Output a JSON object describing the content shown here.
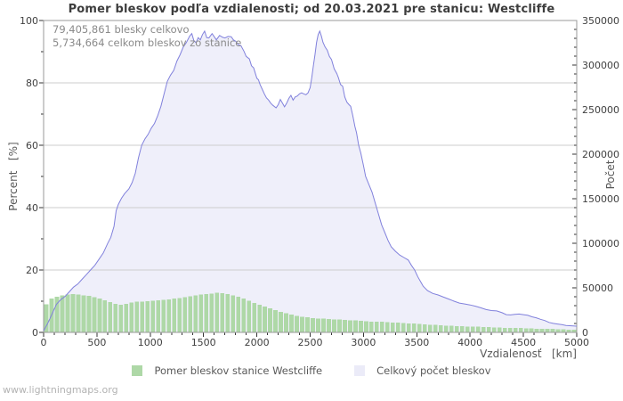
{
  "page": {
    "watermark": "www.lightningmaps.org"
  },
  "chart_data": {
    "type": "area",
    "title": "Pomer bleskov podľa vzdialenosti; od 20.03.2021 pre stanicu: Westcliffe",
    "annotations": [
      "79,405,861 blesky celkovo",
      "5,734,664 celkom bleskov zo stanice"
    ],
    "grid": "horizontal-major-only",
    "legend_position": "bottom-center",
    "colors": {
      "line": "#8181dc",
      "area_fill": "#efeffa",
      "bars": "#aed8a7",
      "gridline": "#cdcdcd",
      "border": "#9a9a9a",
      "tick": "#333333"
    },
    "x_axis": {
      "label": "Vzdialenosť   [km]",
      "min": 0,
      "max": 5000,
      "major_ticks": [
        0,
        500,
        1000,
        1500,
        2000,
        2500,
        3000,
        3500,
        4000,
        4500,
        5000
      ],
      "minor_tick_interval": 100
    },
    "y_left": {
      "label": "Percent   [%]",
      "min": 0,
      "max": 100,
      "major_ticks": [
        0,
        20,
        40,
        60,
        80,
        100
      ],
      "minor_tick_interval": 10
    },
    "y_right": {
      "label": "Počet",
      "min": 0,
      "max": 350000,
      "major_ticks": [
        0,
        50000,
        100000,
        150000,
        200000,
        250000,
        300000,
        350000
      ],
      "minor_tick_interval": 10000
    },
    "legend": [
      {
        "label": "Pomer bleskov stanice Westcliffe",
        "color": "#aed8a7"
      },
      {
        "label": "Celkový počet bleskov",
        "color": "#ebebf8"
      }
    ],
    "series": [
      {
        "name": "Pomer bleskov stanice Westcliffe",
        "type": "bar",
        "axis": "left_percent",
        "color": "#aed8a7",
        "x_start_km": 25,
        "x_step_km": 50,
        "values_percent": [
          9.0,
          10.9,
          11.4,
          11.8,
          12.1,
          12.3,
          12.1,
          11.9,
          11.7,
          11.3,
          10.8,
          10.3,
          9.7,
          9.1,
          8.9,
          9.2,
          9.6,
          9.9,
          9.8,
          10.0,
          10.2,
          10.3,
          10.4,
          10.6,
          10.8,
          11.0,
          11.3,
          11.6,
          11.9,
          12.1,
          12.3,
          12.5,
          12.7,
          12.6,
          12.3,
          11.9,
          11.4,
          10.8,
          10.1,
          9.5,
          8.9,
          8.3,
          7.7,
          7.1,
          6.6,
          6.1,
          5.7,
          5.3,
          5.0,
          4.8,
          4.6,
          4.5,
          4.4,
          4.3,
          4.2,
          4.1,
          4.0,
          3.9,
          3.8,
          3.7,
          3.6,
          3.5,
          3.4,
          3.4,
          3.3,
          3.2,
          3.1,
          3.0,
          2.9,
          2.8,
          2.7,
          2.6,
          2.5,
          2.4,
          2.3,
          2.2,
          2.1,
          2.0,
          2.0,
          1.9,
          1.8,
          1.8,
          1.7,
          1.7,
          1.6,
          1.6,
          1.5,
          1.5,
          1.4,
          1.4,
          1.3,
          1.3,
          1.2,
          1.2,
          1.1,
          1.1,
          1.0,
          1.0,
          0.9,
          0.9
        ]
      },
      {
        "name": "Celkový počet bleskov",
        "type": "area-line",
        "axis": "left_percent_equiv_right_count",
        "line_color": "#8181dc",
        "fill_color": "#efeffa",
        "points_km_percent": [
          [
            0,
            0.5
          ],
          [
            40,
            3
          ],
          [
            80,
            6
          ],
          [
            120,
            9
          ],
          [
            160,
            10.5
          ],
          [
            200,
            11.5
          ],
          [
            240,
            13
          ],
          [
            280,
            14.5
          ],
          [
            320,
            15.5
          ],
          [
            360,
            17
          ],
          [
            400,
            18.5
          ],
          [
            440,
            20
          ],
          [
            480,
            21.5
          ],
          [
            520,
            23.5
          ],
          [
            560,
            25.5
          ],
          [
            600,
            28.5
          ],
          [
            630,
            30.5
          ],
          [
            660,
            34
          ],
          [
            680,
            39
          ],
          [
            700,
            41
          ],
          [
            730,
            43
          ],
          [
            760,
            44.5
          ],
          [
            800,
            46
          ],
          [
            830,
            48
          ],
          [
            860,
            51
          ],
          [
            890,
            56
          ],
          [
            920,
            60
          ],
          [
            950,
            62
          ],
          [
            980,
            63.5
          ],
          [
            1010,
            65.5
          ],
          [
            1040,
            67
          ],
          [
            1070,
            69.5
          ],
          [
            1100,
            72.5
          ],
          [
            1130,
            76.5
          ],
          [
            1160,
            80.5
          ],
          [
            1190,
            82.5
          ],
          [
            1220,
            84
          ],
          [
            1250,
            87
          ],
          [
            1280,
            89
          ],
          [
            1310,
            91.5
          ],
          [
            1340,
            93
          ],
          [
            1370,
            95
          ],
          [
            1390,
            95.8
          ],
          [
            1410,
            93.5
          ],
          [
            1430,
            92.9
          ],
          [
            1450,
            94.5
          ],
          [
            1470,
            93.8
          ],
          [
            1490,
            95.5
          ],
          [
            1510,
            96.6
          ],
          [
            1530,
            94.5
          ],
          [
            1550,
            94.4
          ],
          [
            1580,
            95.8
          ],
          [
            1600,
            94.8
          ],
          [
            1620,
            93.8
          ],
          [
            1650,
            95.2
          ],
          [
            1680,
            94.6
          ],
          [
            1700,
            94.4
          ],
          [
            1730,
            94.9
          ],
          [
            1760,
            94.8
          ],
          [
            1780,
            93.8
          ],
          [
            1800,
            93.4
          ],
          [
            1830,
            92.2
          ],
          [
            1850,
            92
          ],
          [
            1880,
            90.1
          ],
          [
            1900,
            88.5
          ],
          [
            1930,
            87.7
          ],
          [
            1950,
            85.5
          ],
          [
            1970,
            84.8
          ],
          [
            2000,
            81.5
          ],
          [
            2015,
            81
          ],
          [
            2030,
            79.5
          ],
          [
            2050,
            78
          ],
          [
            2070,
            76.5
          ],
          [
            2090,
            75.2
          ],
          [
            2110,
            74.5
          ],
          [
            2130,
            73.5
          ],
          [
            2150,
            72.8
          ],
          [
            2180,
            72
          ],
          [
            2200,
            73
          ],
          [
            2220,
            74.7
          ],
          [
            2240,
            73.5
          ],
          [
            2260,
            72.3
          ],
          [
            2280,
            73.5
          ],
          [
            2300,
            75
          ],
          [
            2320,
            76
          ],
          [
            2340,
            74.5
          ],
          [
            2360,
            75.5
          ],
          [
            2380,
            75.8
          ],
          [
            2400,
            76.5
          ],
          [
            2420,
            76.8
          ],
          [
            2440,
            76.5
          ],
          [
            2460,
            76.2
          ],
          [
            2480,
            76.8
          ],
          [
            2500,
            78.5
          ],
          [
            2515,
            81.7
          ],
          [
            2530,
            85.5
          ],
          [
            2545,
            89
          ],
          [
            2560,
            93
          ],
          [
            2575,
            95.5
          ],
          [
            2590,
            96.6
          ],
          [
            2605,
            95
          ],
          [
            2620,
            93
          ],
          [
            2640,
            91.5
          ],
          [
            2660,
            90.5
          ],
          [
            2680,
            88.5
          ],
          [
            2700,
            87.5
          ],
          [
            2725,
            84.5
          ],
          [
            2750,
            83
          ],
          [
            2765,
            81.7
          ],
          [
            2785,
            79.5
          ],
          [
            2805,
            78.9
          ],
          [
            2825,
            75.5
          ],
          [
            2845,
            73.8
          ],
          [
            2865,
            73
          ],
          [
            2880,
            72.5
          ],
          [
            2900,
            69.5
          ],
          [
            2920,
            66
          ],
          [
            2935,
            64
          ],
          [
            2955,
            60
          ],
          [
            2975,
            57.5
          ],
          [
            3000,
            53.5
          ],
          [
            3020,
            50
          ],
          [
            3050,
            47.5
          ],
          [
            3080,
            45
          ],
          [
            3110,
            41.5
          ],
          [
            3140,
            38
          ],
          [
            3170,
            34.5
          ],
          [
            3200,
            32
          ],
          [
            3230,
            29.5
          ],
          [
            3260,
            27.5
          ],
          [
            3300,
            26
          ],
          [
            3340,
            24.8
          ],
          [
            3380,
            24
          ],
          [
            3420,
            23.2
          ],
          [
            3450,
            21.5
          ],
          [
            3480,
            20
          ],
          [
            3510,
            17.8
          ],
          [
            3540,
            16
          ],
          [
            3560,
            14.8
          ],
          [
            3600,
            13.4
          ],
          [
            3650,
            12.5
          ],
          [
            3700,
            12
          ],
          [
            3750,
            11.3
          ],
          [
            3800,
            10.7
          ],
          [
            3850,
            10
          ],
          [
            3900,
            9.4
          ],
          [
            3950,
            9.1
          ],
          [
            4000,
            8.8
          ],
          [
            4050,
            8.4
          ],
          [
            4100,
            7.9
          ],
          [
            4150,
            7.3
          ],
          [
            4200,
            7
          ],
          [
            4250,
            6.9
          ],
          [
            4300,
            6.3
          ],
          [
            4340,
            5.7
          ],
          [
            4380,
            5.6
          ],
          [
            4420,
            5.8
          ],
          [
            4460,
            5.9
          ],
          [
            4500,
            5.7
          ],
          [
            4540,
            5.5
          ],
          [
            4580,
            5
          ],
          [
            4620,
            4.7
          ],
          [
            4660,
            4.2
          ],
          [
            4700,
            3.8
          ],
          [
            4740,
            3.2
          ],
          [
            4780,
            2.9
          ],
          [
            4820,
            2.7
          ],
          [
            4860,
            2.5
          ],
          [
            4900,
            2.2
          ],
          [
            4950,
            2.1
          ],
          [
            5000,
            2
          ]
        ]
      }
    ]
  }
}
